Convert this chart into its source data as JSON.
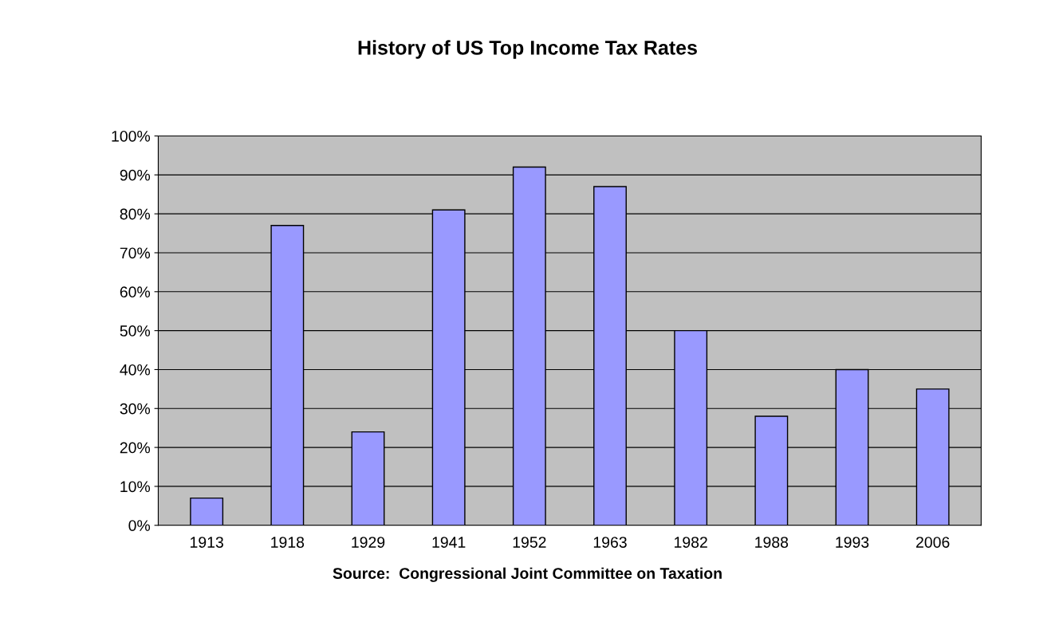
{
  "chart_data": {
    "type": "bar",
    "title": "History of US Top Income Tax Rates",
    "categories": [
      "1913",
      "1918",
      "1929",
      "1941",
      "1952",
      "1963",
      "1982",
      "1988",
      "1993",
      "2006"
    ],
    "values": [
      7,
      77,
      24,
      81,
      92,
      87,
      50,
      28,
      40,
      35
    ],
    "color": "#9999ff",
    "ylim": [
      0,
      100
    ],
    "yticks": [
      {
        "value": 0,
        "label": "0%"
      },
      {
        "value": 10,
        "label": "10%"
      },
      {
        "value": 20,
        "label": "20%"
      },
      {
        "value": 30,
        "label": "30%"
      },
      {
        "value": 40,
        "label": "40%"
      },
      {
        "value": 50,
        "label": "50%"
      },
      {
        "value": 60,
        "label": "60%"
      },
      {
        "value": 70,
        "label": "70%"
      },
      {
        "value": 80,
        "label": "80%"
      },
      {
        "value": 90,
        "label": "90%"
      },
      {
        "value": 100,
        "label": "100%"
      }
    ],
    "grid": "y",
    "legend": false,
    "annotations": [
      "Source:  Congressional Joint Committee on Taxation"
    ]
  }
}
